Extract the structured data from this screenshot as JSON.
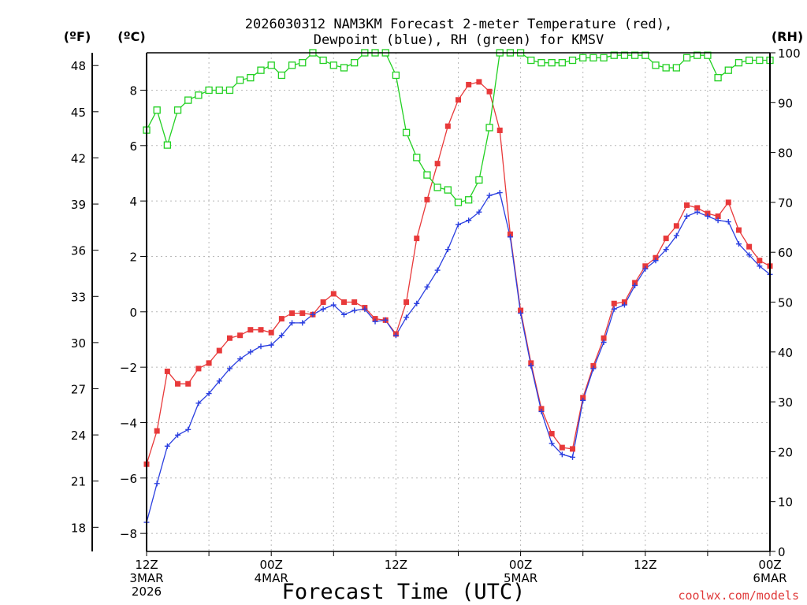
{
  "chart_data": {
    "type": "line",
    "title_line1": "2026030312 NAM3KM Forecast 2-meter Temperature (red),",
    "title_line2": "Dewpoint (blue), RH (green) for KMSV",
    "xlabel": "Forecast Time (UTC)",
    "credit": "coolwx.com/models",
    "left_f_unit": "(ºF)",
    "left_c_unit": "(ºC)",
    "right_unit": "(RH)",
    "x_ticks": [
      {
        "hour": 0,
        "lines": [
          "12Z",
          "3MAR",
          "2026"
        ]
      },
      {
        "hour": 12,
        "lines": [
          "00Z",
          "4MAR"
        ]
      },
      {
        "hour": 24,
        "lines": [
          "12Z"
        ]
      },
      {
        "hour": 36,
        "lines": [
          "00Z",
          "5MAR"
        ]
      },
      {
        "hour": 48,
        "lines": [
          "12Z"
        ]
      },
      {
        "hour": 60,
        "lines": [
          "00Z",
          "6MAR"
        ]
      }
    ],
    "x_range": [
      0,
      60
    ],
    "celsius_range": [
      -8.65,
      9.35
    ],
    "celsius_ticks": [
      -8,
      -6,
      -4,
      -2,
      0,
      2,
      4,
      6,
      8
    ],
    "fahrenheit_ticks": [
      18,
      21,
      24,
      27,
      30,
      33,
      36,
      39,
      42,
      45,
      48
    ],
    "rh_range": [
      0,
      100
    ],
    "rh_ticks": [
      0,
      10,
      20,
      30,
      40,
      50,
      60,
      70,
      80,
      90,
      100
    ],
    "colors": {
      "temperature": "#e8393a",
      "dewpoint": "#2b3fe0",
      "rh": "#22d022",
      "grid": "#b8b8b8"
    },
    "series": [
      {
        "name": "Temperature",
        "unit": "C",
        "marker": "filled-square",
        "values": [
          -5.5,
          -4.3,
          -2.15,
          -2.6,
          -2.6,
          -2.05,
          -1.85,
          -1.4,
          -0.95,
          -0.85,
          -0.65,
          -0.65,
          -0.75,
          -0.25,
          -0.05,
          -0.05,
          -0.1,
          0.35,
          0.65,
          0.35,
          0.35,
          0.15,
          -0.25,
          -0.3,
          -0.8,
          0.35,
          2.65,
          4.05,
          5.35,
          6.7,
          7.65,
          8.2,
          8.3,
          7.95,
          6.55,
          2.8,
          0.05,
          -1.85,
          -3.5,
          -4.4,
          -4.9,
          -4.95,
          -3.1,
          -1.95,
          -0.95,
          0.3,
          0.35,
          1.05,
          1.65,
          1.95,
          2.65,
          3.1,
          3.85,
          3.75,
          3.55,
          3.45,
          3.95,
          2.95,
          2.35,
          1.85,
          1.65
        ]
      },
      {
        "name": "Dewpoint",
        "unit": "C",
        "marker": "plus",
        "values": [
          -7.6,
          -6.2,
          -4.85,
          -4.45,
          -4.25,
          -3.3,
          -2.95,
          -2.5,
          -2.05,
          -1.7,
          -1.45,
          -1.25,
          -1.2,
          -0.85,
          -0.4,
          -0.4,
          -0.1,
          0.1,
          0.25,
          -0.1,
          0.05,
          0.1,
          -0.35,
          -0.3,
          -0.85,
          -0.2,
          0.3,
          0.9,
          1.5,
          2.25,
          3.15,
          3.3,
          3.6,
          4.2,
          4.3,
          2.7,
          -0.05,
          -1.95,
          -3.6,
          -4.75,
          -5.15,
          -5.25,
          -3.2,
          -2.05,
          -1.1,
          0.1,
          0.25,
          0.95,
          1.55,
          1.85,
          2.25,
          2.75,
          3.45,
          3.6,
          3.45,
          3.3,
          3.25,
          2.45,
          2.05,
          1.65,
          1.35
        ]
      },
      {
        "name": "RH",
        "unit": "%",
        "marker": "open-square",
        "values": [
          84.5,
          88.5,
          81.5,
          88.5,
          90.5,
          91.5,
          92.5,
          92.5,
          92.5,
          94.5,
          95,
          96.5,
          97.5,
          95.5,
          97.5,
          98,
          100,
          98.5,
          97.5,
          97,
          98,
          100,
          100,
          100,
          95.5,
          84,
          79,
          75.5,
          73,
          72.5,
          70,
          70.5,
          74.5,
          85,
          100,
          100,
          100,
          98.5,
          98,
          98,
          98,
          98.5,
          99,
          99,
          99,
          99.5,
          99.5,
          99.5,
          99.5,
          97.5,
          97,
          97,
          99,
          99.5,
          99.5,
          95,
          96.5,
          98,
          98.5,
          98.5,
          98.5
        ]
      }
    ]
  }
}
